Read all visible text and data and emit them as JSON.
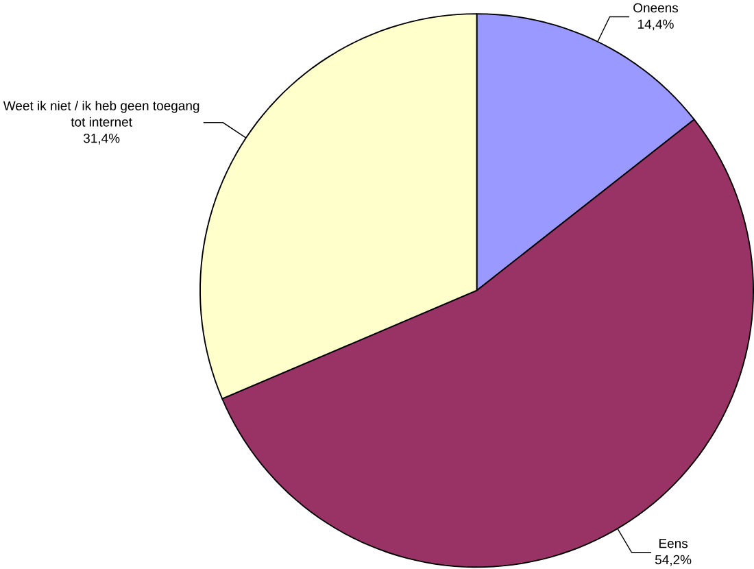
{
  "chart_data": {
    "type": "pie",
    "categories": [
      "Oneens",
      "Eens",
      "Weet ik niet / ik heb geen toegang tot internet"
    ],
    "values": [
      14.4,
      54.2,
      31.4
    ],
    "value_labels": [
      "14,4%",
      "54,2%",
      "31,4%"
    ],
    "colors": [
      "#9999ff",
      "#993366",
      "#ffffcc"
    ]
  }
}
